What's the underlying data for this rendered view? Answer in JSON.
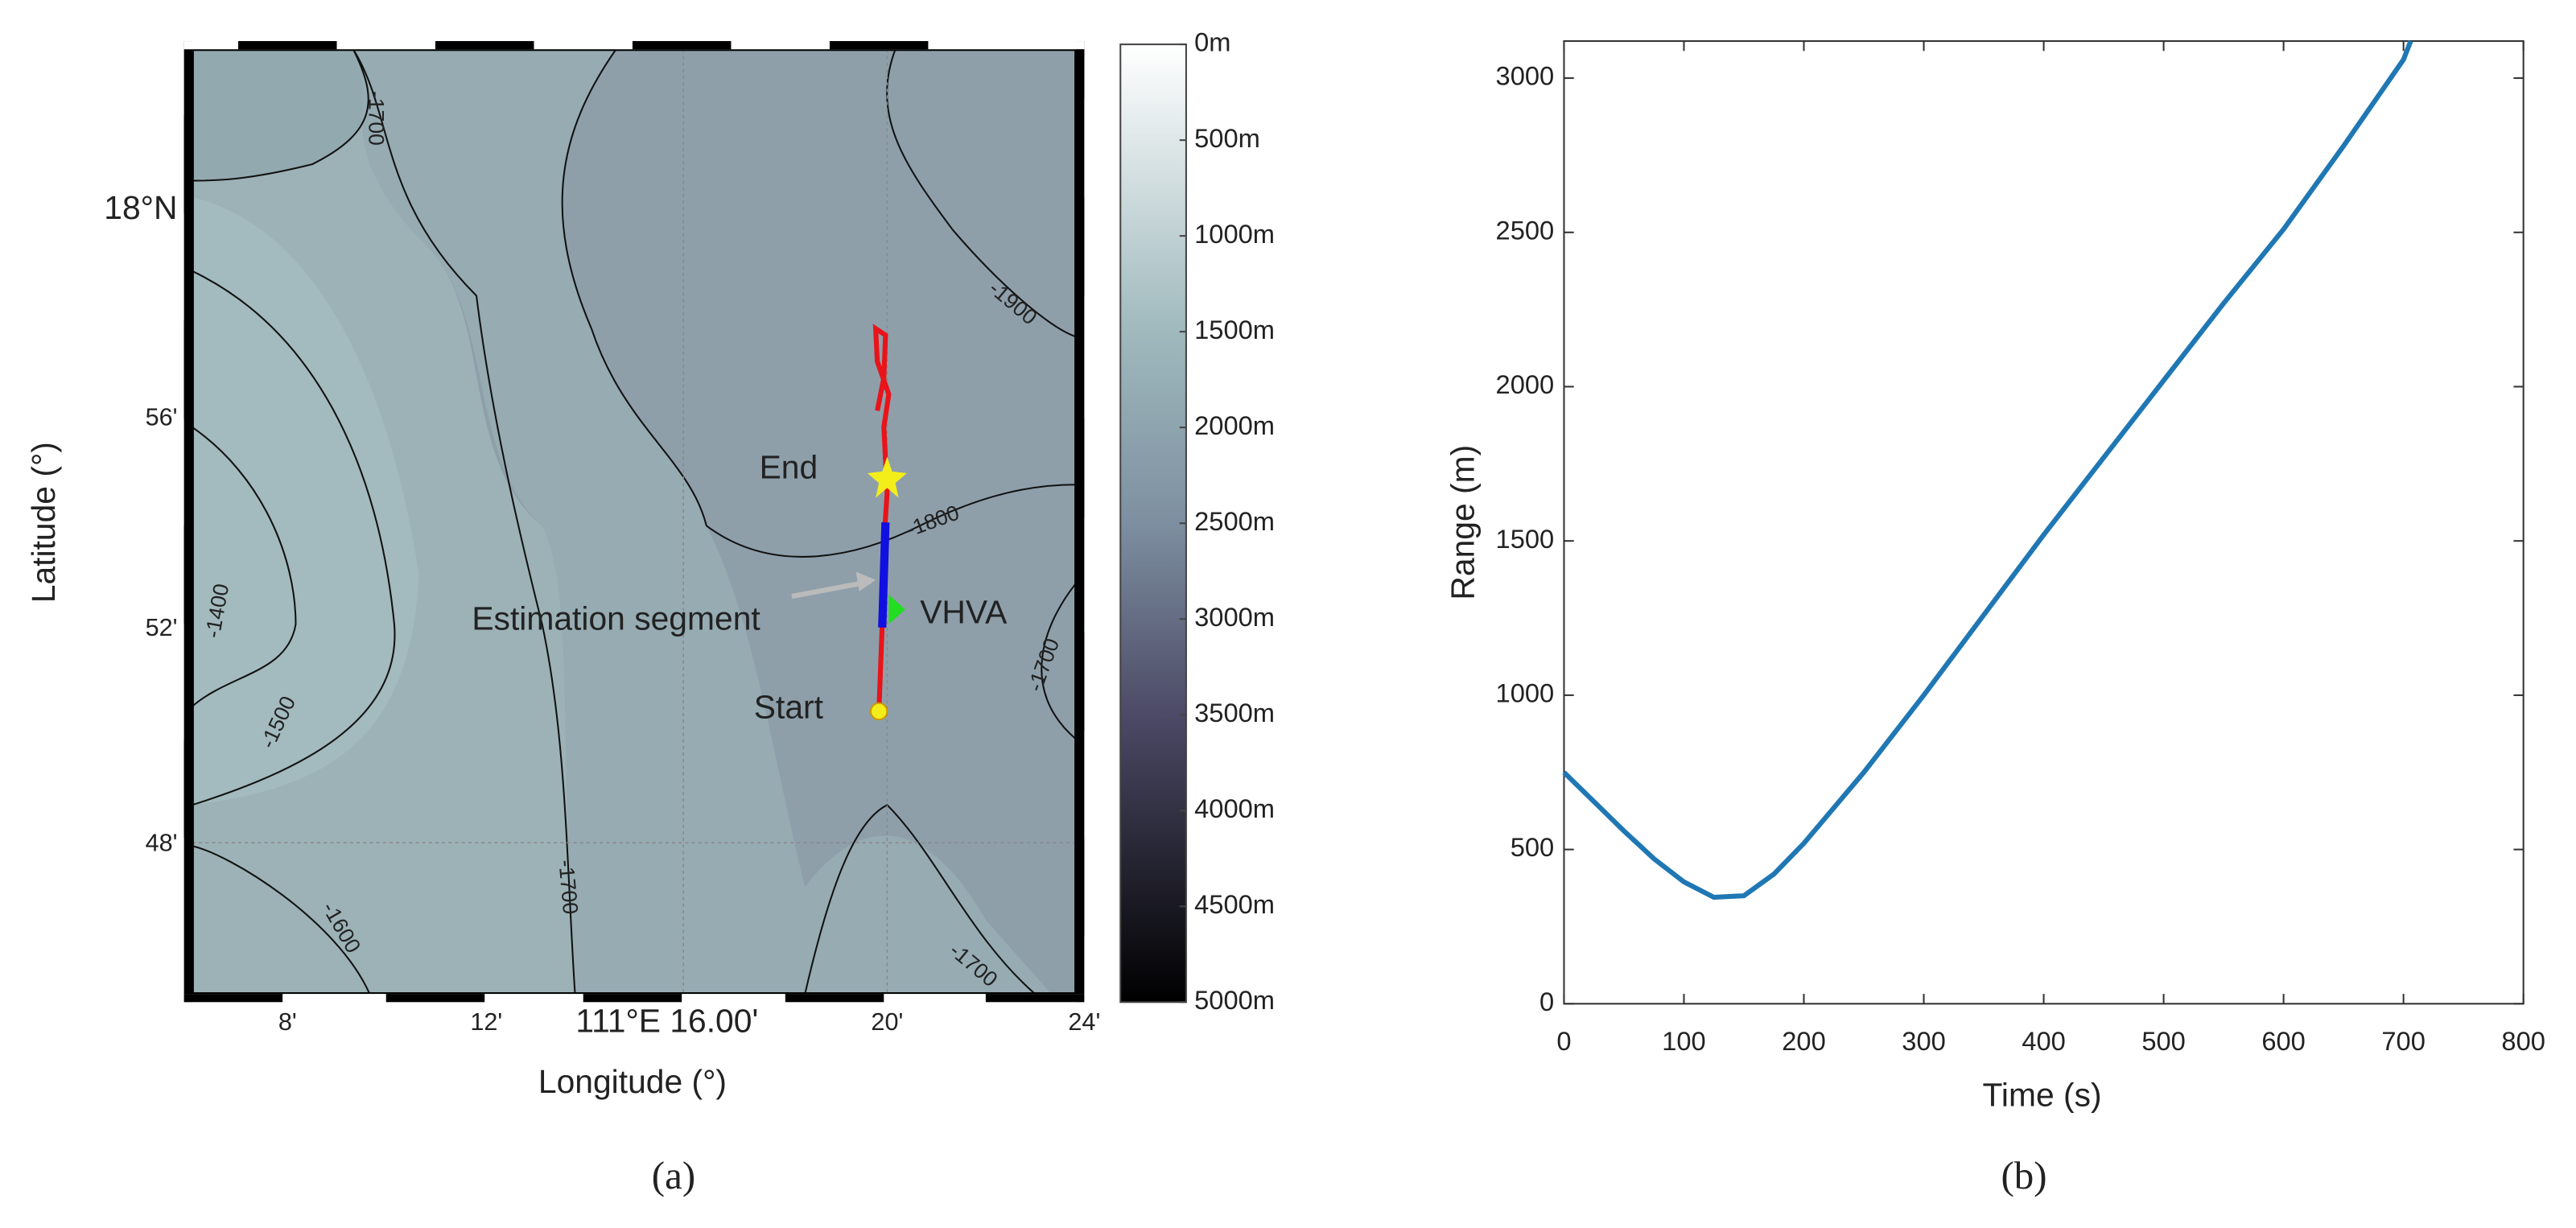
{
  "chart_data": [
    {
      "type": "map",
      "xlabel": "Longitude (°)",
      "ylabel": "Latitude (°)",
      "caption": "(a)",
      "xtick_labels": [
        "8'",
        "12'",
        "111°E 16.00'",
        "20'",
        "24'"
      ],
      "ytick_labels": [
        "18°N",
        "56'",
        "52'",
        "48'"
      ],
      "clim": [
        0,
        5000
      ],
      "cticks": [
        {
          "value": 0,
          "label": "0m"
        },
        {
          "value": 500,
          "label": "500m"
        },
        {
          "value": 1000,
          "label": "1000m"
        },
        {
          "value": 1500,
          "label": "1500m"
        },
        {
          "value": 2000,
          "label": "2000m"
        },
        {
          "value": 2500,
          "label": "2500m"
        },
        {
          "value": 3000,
          "label": "3000m"
        },
        {
          "value": 3500,
          "label": "3500m"
        },
        {
          "value": 4000,
          "label": "4000m"
        },
        {
          "value": 4500,
          "label": "4500m"
        },
        {
          "value": 5000,
          "label": "5000m"
        }
      ],
      "contour_labels": [
        "-1700",
        "-1900",
        "-1800",
        "-1400",
        "-1500",
        "-1600",
        "-1700",
        "-1700",
        "-1700"
      ],
      "annotations": [
        "End",
        "Estimation segment",
        "VHVA",
        "Start"
      ]
    },
    {
      "type": "line",
      "xlabel": "Time (s)",
      "ylabel": "Range (m)",
      "caption": "(b)",
      "color": "#1f77b4",
      "x": [
        0,
        25,
        50,
        75,
        100,
        125,
        150,
        175,
        200,
        250,
        300,
        350,
        400,
        450,
        500,
        550,
        600,
        650,
        700,
        706
      ],
      "y": [
        750,
        655,
        560,
        470,
        395,
        345,
        350,
        420,
        520,
        750,
        1000,
        1260,
        1520,
        1770,
        2020,
        2270,
        2510,
        2780,
        3060,
        3120
      ],
      "xlim": [
        0,
        800
      ],
      "xticks": [
        0,
        100,
        200,
        300,
        400,
        500,
        600,
        700,
        800
      ],
      "ylim": [
        0,
        3120
      ],
      "yticks": [
        0,
        500,
        1000,
        1500,
        2000,
        2500,
        3000
      ]
    }
  ]
}
